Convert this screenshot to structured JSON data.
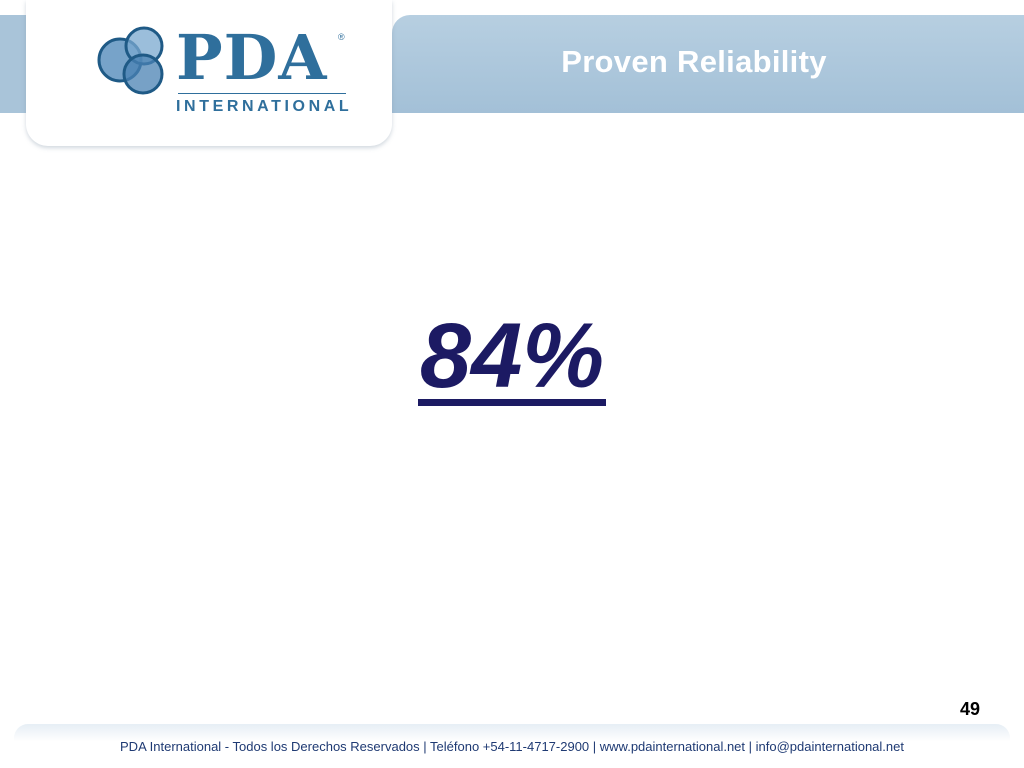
{
  "header": {
    "title": "Proven Reliability"
  },
  "logo": {
    "wordmark": "PDA",
    "registered": "®",
    "subtitle": "INTERNATIONAL",
    "icon": "three-overlapping-circles-logo",
    "color": "#2f6f9c"
  },
  "main": {
    "value": "84%",
    "value_color": "#1c1a63"
  },
  "page": {
    "number": "49"
  },
  "footer": {
    "text": "PDA International - Todos los Derechos Reservados | Teléfono +54-11-4717-2900 | www.pdainternational.net  | info@pdainternational.net"
  },
  "colors": {
    "title_bar": "#a3c0d7",
    "footer_text": "#1f3a73"
  }
}
